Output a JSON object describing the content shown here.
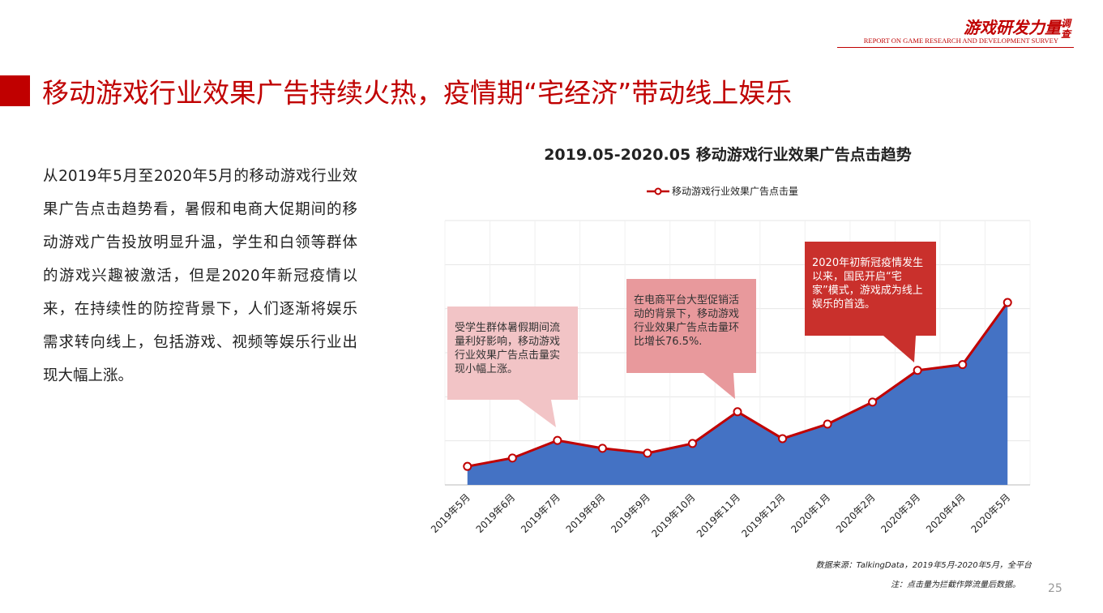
{
  "header": {
    "logo": "游戏研发力量",
    "logo_tag": "调查",
    "subtitle": "REPORT ON GAME RESEARCH AND DEVELOPMENT SURVEY"
  },
  "title": "移动游戏行业效果广告持续火热，疫情期“宅经济”带动线上娱乐",
  "body": "从2019年5月至2020年5月的移动游戏行业效果广告点击趋势看，暑假和电商大促期间的移动游戏广告投放明显升温，学生和白领等群体的游戏兴趣被激活，但是2020年新冠疫情以来，在持续性的防控背景下，人们逐渐将娱乐需求转向线上，包括游戏、视频等娱乐行业出现大幅上涨。",
  "chart_data": {
    "type": "area",
    "title": "2019.05-2020.05  移动游戏行业效果广告点击趋势",
    "categories": [
      "2019年5月",
      "2019年6月",
      "2019年7月",
      "2019年8月",
      "2019年9月",
      "2019年10月",
      "2019年11月",
      "2019年12月",
      "2020年1月",
      "2020年2月",
      "2020年3月",
      "2020年4月",
      "2020年5月"
    ],
    "series": [
      {
        "name": "移动游戏行业效果广告点击量",
        "color": "#4472c4",
        "line_color": "#c00000",
        "values": [
          0.42,
          0.61,
          1.01,
          0.83,
          0.72,
          0.94,
          1.66,
          1.05,
          1.38,
          1.88,
          2.6,
          2.73,
          4.14
        ]
      }
    ],
    "ylim": [
      0,
      6
    ],
    "grid": true,
    "annotations": [
      {
        "text": "受学生群体暑假期间流量利好影响，移动游戏行业效果广告点击量实现小幅上涨。",
        "color": "#f2c4c6",
        "text_color": "#333333"
      },
      {
        "text": "在电商平台大型促销活动的背景下，移动游戏行业效果广告点击量环比增长76.5%.",
        "color": "#e8999c",
        "text_color": "#333333"
      },
      {
        "text": "2020年初新冠疫情发生以来，国民开启“宅家”模式，游戏成为线上娱乐的首选。",
        "color": "#c9302c",
        "text_color": "#ffffff"
      }
    ]
  },
  "source": "数据来源：TalkingData，2019年5月-2020年5月，全平台",
  "note": "注：点击量为拦截作弊流量后数据。",
  "page_number": 25
}
